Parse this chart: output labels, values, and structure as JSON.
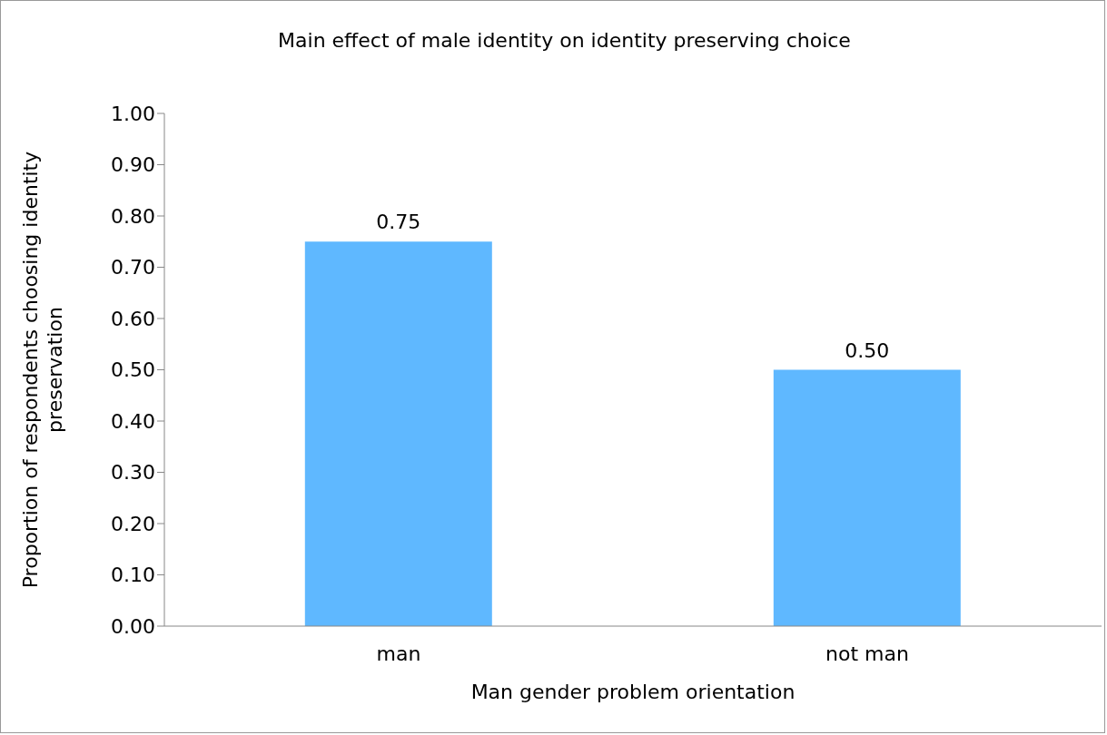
{
  "chart_data": {
    "type": "bar",
    "title": "Main effect of male identity on identity preserving choice",
    "xlabel": "Man gender problem orientation",
    "ylabel": "Proportion of respondents choosing identity preservation",
    "categories": [
      "man",
      "not man"
    ],
    "values": [
      0.75,
      0.5
    ],
    "value_labels": [
      "0.75",
      "0.50"
    ],
    "color": "#5fb8ff",
    "ylim": [
      0,
      1
    ],
    "yticks": [
      {
        "value": 0,
        "label": "0.00"
      },
      {
        "value": 0.1,
        "label": "0.10"
      },
      {
        "value": 0.2,
        "label": "0.20"
      },
      {
        "value": 0.3,
        "label": "0.30"
      },
      {
        "value": 0.4,
        "label": "0.40"
      },
      {
        "value": 0.5,
        "label": "0.50"
      },
      {
        "value": 0.6,
        "label": "0.60"
      },
      {
        "value": 0.7,
        "label": "0.70"
      },
      {
        "value": 0.8,
        "label": "0.80"
      },
      {
        "value": 0.9,
        "label": "0.90"
      },
      {
        "value": 1,
        "label": "1.00"
      }
    ],
    "grid": false,
    "legend": false
  }
}
